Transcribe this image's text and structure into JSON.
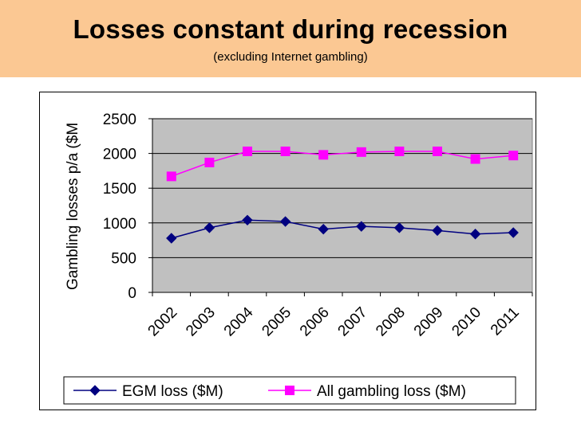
{
  "header": {
    "title": "Losses constant during recession",
    "subtitle": "(excluding Internet gambling)"
  },
  "colors": {
    "header_bg": "#fbc893",
    "plot_bg": "#c0c0c0",
    "egm": "#000080",
    "all": "#ff00ff"
  },
  "chart_data": {
    "type": "line",
    "title": "Losses constant during recession",
    "subtitle": "(excluding Internet gambling)",
    "xlabel": "",
    "ylabel": "Gambling losses p/a ($M",
    "categories": [
      "2002",
      "2003",
      "2004",
      "2005",
      "2006",
      "2007",
      "2008",
      "2009",
      "2010",
      "2011"
    ],
    "yticks": [
      "0",
      "500",
      "1000",
      "1500",
      "2000",
      "2500"
    ],
    "ylim": [
      0,
      2500
    ],
    "grid": true,
    "legend_position": "bottom",
    "series": [
      {
        "name": "EGM loss ($M)",
        "marker": "diamond",
        "values": [
          780,
          930,
          1040,
          1020,
          910,
          950,
          930,
          890,
          840,
          860
        ]
      },
      {
        "name": "All gambling loss ($M)",
        "marker": "square",
        "values": [
          1670,
          1870,
          2030,
          2030,
          1980,
          2020,
          2030,
          2030,
          1920,
          1970
        ]
      }
    ]
  }
}
